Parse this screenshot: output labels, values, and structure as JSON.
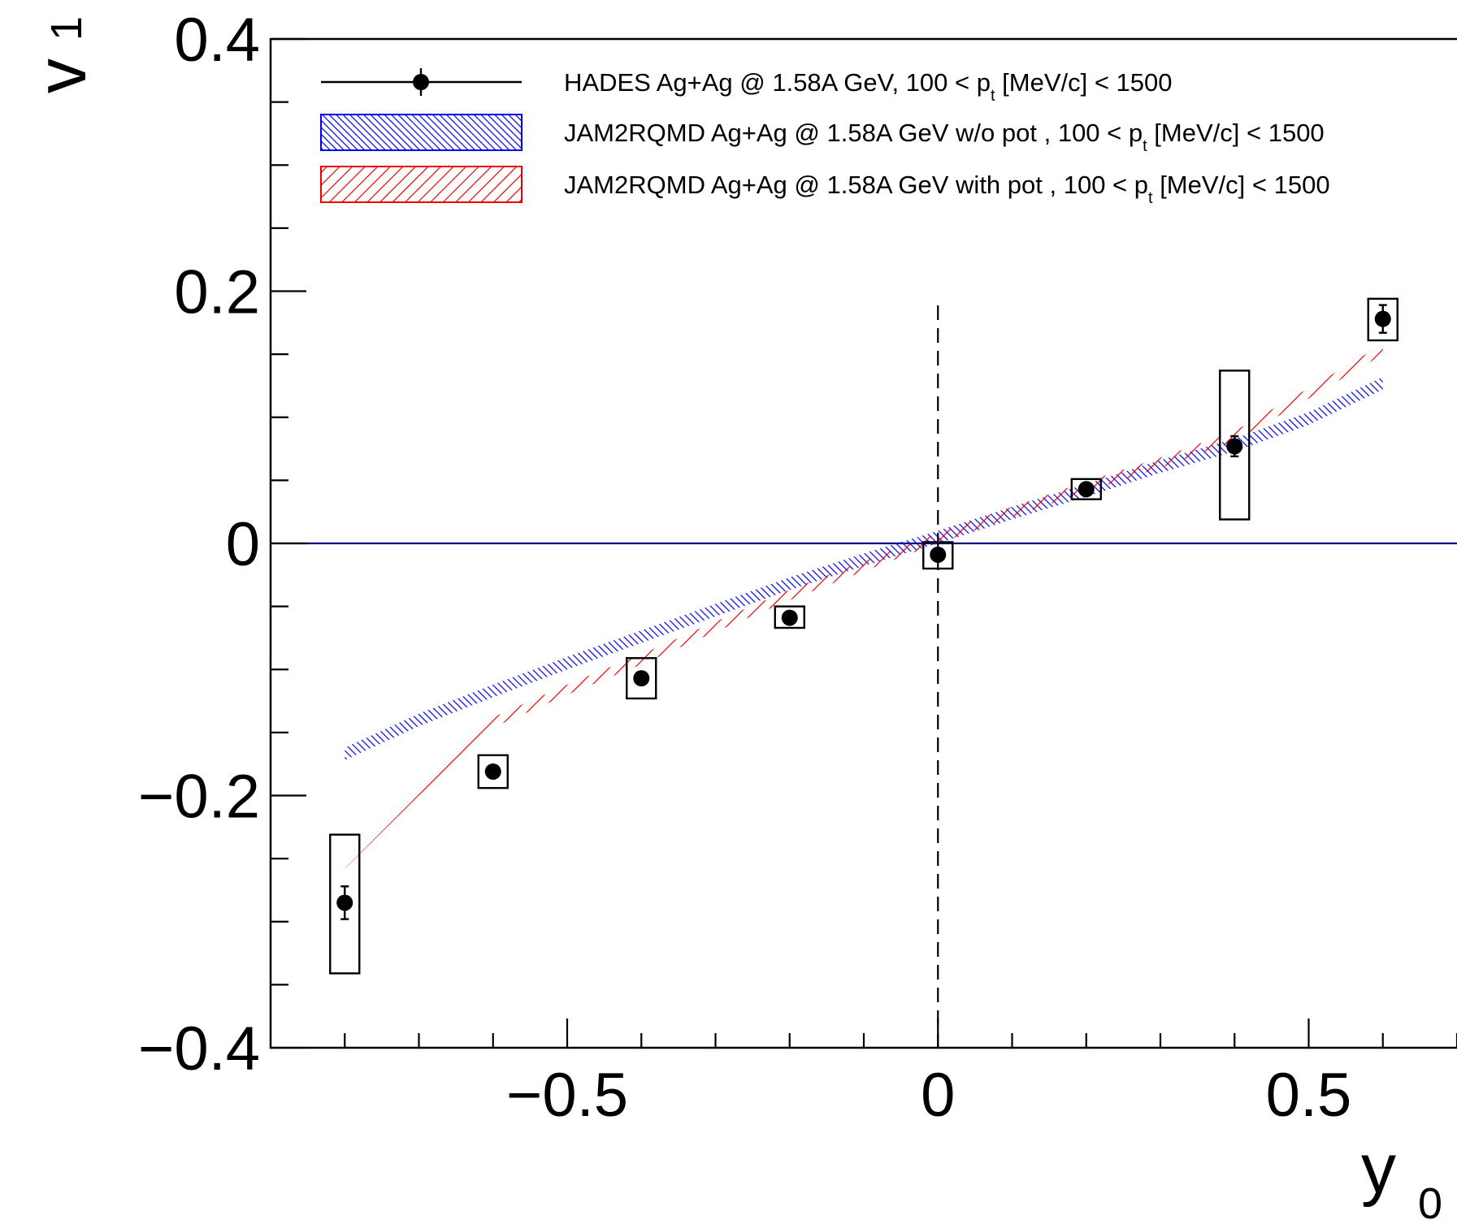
{
  "chart_data": {
    "type": "scatter",
    "title": "",
    "xlabel": {
      "main": "y",
      "sub": "0"
    },
    "ylabel": {
      "main": "v",
      "sub": "1"
    },
    "xlim": [
      -0.9,
      0.7
    ],
    "ylim": [
      -0.4,
      0.4
    ],
    "x_ticks": [
      -0.5,
      0,
      0.5
    ],
    "x_tick_labels": [
      "−0.5",
      "0",
      "0.5"
    ],
    "y_ticks": [
      -0.4,
      -0.2,
      0,
      0.2,
      0.4
    ],
    "y_tick_labels": [
      "−0.4",
      "−0.2",
      "0",
      "0.2",
      "0.4"
    ],
    "grid": false,
    "legend_position": "top",
    "reference_lines": [
      {
        "orientation": "horizontal",
        "value": 0,
        "color": "#00008b",
        "style": "solid"
      },
      {
        "orientation": "vertical",
        "value": 0,
        "color": "#000000",
        "style": "dashed",
        "y_range": [
          -0.4,
          0.19
        ]
      }
    ],
    "series": [
      {
        "name": "HADES Ag+Ag @ 1.58A GeV, 100 < p",
        "name_sub": "t",
        "name_tail": " [MeV/c] < 1500",
        "kind": "points",
        "color": "#000000",
        "x": [
          -0.8,
          -0.6,
          -0.4,
          -0.2,
          0.0,
          0.2,
          0.4,
          0.6
        ],
        "y": [
          -0.285,
          -0.181,
          -0.107,
          -0.059,
          -0.009,
          0.043,
          0.077,
          0.178
        ],
        "stat_err": [
          0.013,
          0.004,
          0.003,
          0.002,
          0.002,
          0.003,
          0.008,
          0.011
        ],
        "sys_low": [
          -0.341,
          -0.194,
          -0.123,
          -0.067,
          -0.02,
          0.035,
          0.019,
          0.161
        ],
        "sys_high": [
          -0.231,
          -0.168,
          -0.091,
          -0.05,
          0.001,
          0.051,
          0.137,
          0.194
        ]
      },
      {
        "name": "JAM2RQMD Ag+Ag @ 1.58A GeV w/o pot , 100 < p",
        "name_sub": "t",
        "name_tail": " [MeV/c] < 1500",
        "kind": "band",
        "color": "#0000ee",
        "x": [
          -0.8,
          -0.7,
          -0.6,
          -0.5,
          -0.4,
          -0.3,
          -0.2,
          -0.1,
          0.0,
          0.1,
          0.2,
          0.3,
          0.4,
          0.5,
          0.6
        ],
        "y_low": [
          -0.172,
          -0.145,
          -0.122,
          -0.1,
          -0.079,
          -0.058,
          -0.037,
          -0.018,
          0.0,
          0.019,
          0.037,
          0.056,
          0.073,
          0.094,
          0.122
        ],
        "y_high": [
          -0.162,
          -0.135,
          -0.112,
          -0.09,
          -0.069,
          -0.048,
          -0.027,
          -0.008,
          0.01,
          0.029,
          0.047,
          0.066,
          0.083,
          0.104,
          0.132
        ]
      },
      {
        "name": "JAM2RQMD Ag+Ag @ 1.58A GeV with pot , 100 < p",
        "name_sub": "t",
        "name_tail": " [MeV/c] < 1500",
        "kind": "band",
        "color": "#ee0000",
        "x": [
          -0.8,
          -0.7,
          -0.6,
          -0.5,
          -0.4,
          -0.3,
          -0.2,
          -0.1,
          0.0,
          0.1,
          0.2,
          0.3,
          0.4,
          0.5,
          0.6
        ],
        "y_low": [
          -0.258,
          -0.2,
          -0.146,
          -0.12,
          -0.096,
          -0.07,
          -0.045,
          -0.022,
          0.0,
          0.021,
          0.041,
          0.06,
          0.081,
          0.115,
          0.15
        ],
        "y_high": [
          -0.25,
          -0.192,
          -0.138,
          -0.112,
          -0.088,
          -0.062,
          -0.037,
          -0.014,
          0.008,
          0.029,
          0.049,
          0.068,
          0.089,
          0.123,
          0.158
        ]
      }
    ]
  }
}
